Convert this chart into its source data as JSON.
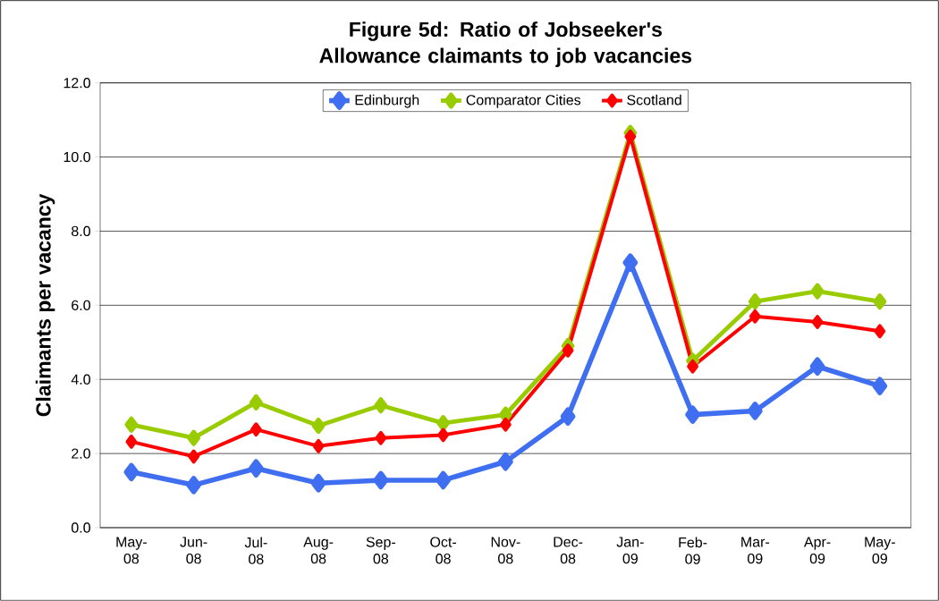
{
  "chart_data": {
    "type": "line",
    "title": "Figure 5d: Ratio of Jobseeker's Allowance claimants to job vacancies",
    "ylabel": "Claimants per vacancy",
    "categories": [
      "May-08",
      "Jun-08",
      "Jul-08",
      "Aug-08",
      "Sep-08",
      "Oct-08",
      "Nov-08",
      "Dec-08",
      "Jan-09",
      "Feb-09",
      "Mar-09",
      "Apr-09",
      "May-09"
    ],
    "series": [
      {
        "name": "Edinburgh",
        "color": "#3f6ff0",
        "values": [
          1.5,
          1.15,
          1.6,
          1.2,
          1.28,
          1.28,
          1.78,
          3.0,
          7.15,
          3.05,
          3.15,
          4.35,
          3.82
        ]
      },
      {
        "name": "Comparator Cities",
        "color": "#99cc00",
        "values": [
          2.78,
          2.42,
          3.38,
          2.75,
          3.3,
          2.82,
          3.05,
          4.9,
          10.65,
          4.5,
          6.1,
          6.38,
          6.1
        ]
      },
      {
        "name": "Scotland",
        "color": "#ff0000",
        "values": [
          2.32,
          1.92,
          2.65,
          2.2,
          2.42,
          2.5,
          2.78,
          4.78,
          10.55,
          4.35,
          5.7,
          5.55,
          5.3
        ]
      }
    ],
    "ylim": [
      0,
      12
    ],
    "yticks": [
      {
        "value": 0,
        "label": "0.0"
      },
      {
        "value": 2,
        "label": "2.0"
      },
      {
        "value": 4,
        "label": "4.0"
      },
      {
        "value": 6,
        "label": "6.0"
      },
      {
        "value": 8,
        "label": "8.0"
      },
      {
        "value": 10,
        "label": "10.0"
      },
      {
        "value": 12,
        "label": "12.0"
      }
    ],
    "grid": "y",
    "legend": "top",
    "marker": "diamond",
    "line_style": "solid"
  }
}
